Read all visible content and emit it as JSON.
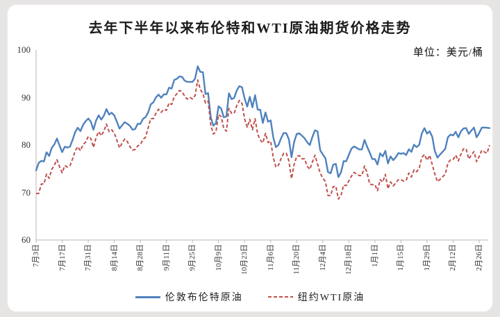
{
  "title": "去年下半年以来布伦特和WTI原油期货价格走势",
  "unit_label": "单位：美元/桶",
  "colors": {
    "brent": "#4f81bd",
    "wti": "#c0504d",
    "axis": "#b8b6b6"
  },
  "legend": [
    {
      "label": "伦敦布伦特原油",
      "color": "#4f81bd",
      "style": "solid"
    },
    {
      "label": "纽约WTI原油",
      "color": "#c0504d",
      "style": "dashed"
    }
  ],
  "chart_data": {
    "type": "line",
    "title": "去年下半年以来布伦特和WTI原油期货价格走势",
    "ylabel": "美元/桶",
    "ylim": [
      60,
      100
    ],
    "y_ticks": [
      60,
      70,
      80,
      90,
      100
    ],
    "grid": false,
    "legend_position": "bottom",
    "x_tick_every": 10,
    "x_tick_labels": [
      "7月3日",
      "7月17日",
      "7月31日",
      "8月14日",
      "8月28日",
      "9月11日",
      "9月25日",
      "10月9日",
      "10月23日",
      "11月6日",
      "11月20日",
      "12月4日",
      "12月18日",
      "1月1日",
      "1月15日",
      "1月29日",
      "2月12日",
      "2月26日"
    ],
    "series": [
      {
        "name": "伦敦布伦特原油",
        "color": "#4f81bd",
        "style": "solid",
        "values": [
          74.65,
          76.25,
          76.65,
          76.52,
          78.47,
          77.69,
          79.4,
          80.11,
          81.36,
          79.87,
          78.5,
          79.63,
          79.46,
          79.64,
          81.07,
          82.74,
          83.64,
          82.92,
          84.24,
          84.99,
          85.56,
          84.91,
          83.2,
          85.14,
          86.24,
          85.34,
          86.17,
          87.55,
          86.4,
          86.81,
          86.21,
          84.89,
          83.45,
          84.12,
          84.8,
          84.46,
          84.03,
          83.21,
          83.36,
          84.48,
          84.42,
          85.49,
          85.86,
          86.86,
          88.55,
          89.0,
          90.04,
          90.6,
          89.92,
          90.65,
          90.64,
          92.06,
          91.88,
          93.7,
          93.93,
          94.43,
          94.34,
          93.53,
          93.3,
          93.27,
          93.29,
          93.96,
          96.55,
          95.38,
          95.31,
          90.71,
          90.92,
          85.81,
          84.07,
          84.58,
          88.15,
          87.65,
          85.82,
          86.0,
          90.89,
          89.65,
          89.9,
          91.5,
          92.38,
          92.16,
          89.83,
          88.07,
          90.13,
          87.93,
          90.48,
          87.45,
          87.41,
          84.63,
          86.85,
          84.89,
          85.18,
          81.61,
          79.54,
          80.01,
          81.43,
          82.52,
          82.47,
          81.18,
          77.42,
          80.61,
          82.32,
          82.45,
          81.96,
          81.42,
          80.58,
          79.98,
          81.68,
          83.1,
          82.83,
          78.88,
          78.03,
          77.2,
          74.3,
          74.05,
          75.84,
          76.03,
          73.24,
          74.26,
          76.61,
          76.55,
          77.95,
          79.23,
          79.7,
          79.39,
          79.07,
          79.07,
          81.07,
          79.65,
          78.39,
          77.04,
          77.04,
          75.89,
          78.25,
          77.59,
          78.76,
          76.12,
          77.59,
          76.8,
          77.41,
          78.29,
          78.15,
          78.29,
          77.88,
          79.1,
          78.56,
          80.06,
          79.55,
          80.04,
          82.43,
          83.55,
          82.4,
          82.87,
          81.71,
          78.7,
          77.33,
          77.99,
          78.59,
          79.21,
          81.63,
          82.19,
          82.0,
          82.77,
          81.6,
          82.86,
          83.47,
          83.56,
          82.34,
          83.03,
          83.67,
          81.62,
          82.53,
          83.65,
          83.68,
          83.62,
          83.55
        ]
      },
      {
        "name": "纽约WTI原油",
        "color": "#c0504d",
        "style": "dashed",
        "values": [
          69.79,
          69.79,
          71.79,
          71.8,
          73.86,
          72.99,
          74.83,
          75.75,
          76.89,
          75.42,
          74.15,
          75.66,
          75.35,
          75.63,
          77.07,
          78.74,
          79.63,
          78.78,
          80.09,
          80.58,
          81.8,
          81.37,
          79.49,
          81.55,
          82.82,
          81.94,
          82.92,
          84.4,
          82.82,
          83.19,
          82.51,
          80.99,
          79.38,
          80.39,
          81.25,
          80.72,
          79.64,
          78.89,
          79.05,
          79.83,
          80.1,
          81.16,
          81.63,
          83.63,
          85.55,
          85.55,
          86.69,
          87.54,
          86.87,
          87.51,
          87.29,
          88.84,
          88.52,
          90.16,
          90.77,
          91.48,
          91.2,
          90.28,
          89.63,
          90.03,
          89.68,
          90.39,
          93.68,
          91.71,
          90.79,
          88.82,
          89.23,
          84.22,
          82.31,
          82.79,
          86.38,
          85.97,
          83.49,
          82.91,
          87.69,
          86.66,
          86.66,
          88.32,
          89.37,
          88.75,
          85.49,
          83.74,
          85.39,
          83.21,
          85.54,
          82.31,
          81.02,
          80.44,
          82.46,
          80.51,
          80.82,
          77.37,
          75.33,
          75.74,
          77.17,
          78.26,
          78.26,
          76.66,
          72.9,
          75.89,
          77.6,
          77.77,
          77.1,
          77.1,
          75.54,
          74.86,
          76.41,
          77.86,
          75.96,
          74.07,
          73.04,
          72.32,
          69.38,
          69.34,
          71.23,
          71.32,
          68.61,
          69.47,
          71.58,
          71.43,
          72.47,
          73.44,
          74.22,
          73.89,
          73.56,
          73.56,
          75.57,
          74.11,
          71.77,
          71.65,
          71.65,
          70.38,
          72.7,
          72.19,
          73.81,
          70.77,
          72.24,
          71.37,
          72.02,
          72.68,
          72.68,
          72.4,
          72.56,
          74.08,
          73.25,
          74.76,
          74.37,
          75.09,
          77.36,
          78.01,
          76.78,
          77.82,
          75.85,
          73.82,
          72.28,
          72.78,
          73.31,
          73.86,
          76.22,
          76.84,
          76.92,
          77.87,
          76.64,
          78.03,
          79.19,
          79.19,
          77.04,
          77.91,
          78.61,
          76.49,
          77.58,
          78.87,
          78.54,
          78.26,
          79.97
        ]
      }
    ]
  }
}
